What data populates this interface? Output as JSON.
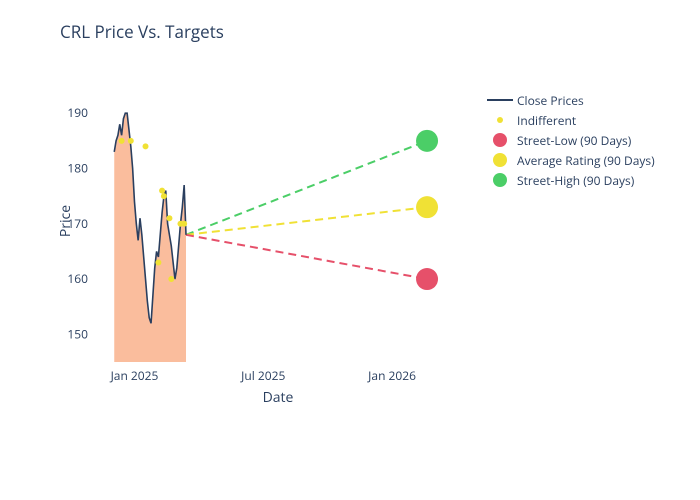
{
  "chart": {
    "type": "line+scatter",
    "title": "CRL Price Vs. Targets",
    "title_fontsize": 17,
    "title_color": "#2a3f5f",
    "background_color": "#ffffff",
    "plot_background": "#ffffff",
    "x_axis": {
      "title": "Date",
      "title_fontsize": 14,
      "label_color": "#2a3f5f",
      "tick_fontsize": 12,
      "ticks": [
        {
          "label": "Jan 2025",
          "pos": 0.11
        },
        {
          "label": "Jul 2025",
          "pos": 0.46
        },
        {
          "label": "Jan 2026",
          "pos": 0.81
        }
      ],
      "domain_start": "2024-11-01",
      "domain_end": "2026-04-01"
    },
    "y_axis": {
      "title": "Price",
      "title_fontsize": 14,
      "label_color": "#2a3f5f",
      "tick_fontsize": 12,
      "ticks": [
        150,
        160,
        170,
        180,
        190
      ],
      "ylim": [
        145,
        196
      ]
    },
    "series": {
      "close_prices": {
        "label": "Close Prices",
        "type": "line+area",
        "line_color": "#2a3f5f",
        "line_width": 1.6,
        "fill_color": "#f8ab82",
        "fill_opacity": 0.78,
        "xpos": [
          0.055,
          0.06,
          0.065,
          0.07,
          0.075,
          0.08,
          0.085,
          0.09,
          0.095,
          0.1,
          0.105,
          0.11,
          0.115,
          0.12,
          0.125,
          0.13,
          0.135,
          0.14,
          0.145,
          0.15,
          0.155,
          0.16,
          0.165,
          0.17,
          0.175,
          0.18,
          0.185,
          0.19,
          0.195,
          0.2,
          0.205,
          0.21,
          0.215,
          0.22,
          0.225,
          0.23,
          0.235,
          0.24,
          0.245,
          0.25
        ],
        "y": [
          183,
          185,
          186,
          188,
          186,
          189,
          190,
          190,
          187,
          184,
          180,
          174,
          170,
          167,
          171,
          168,
          164,
          160,
          156,
          153,
          152,
          157,
          162,
          165,
          164,
          168,
          172,
          175,
          176,
          170,
          168,
          166,
          163,
          160,
          162,
          166,
          170,
          173,
          177,
          168
        ]
      },
      "indifferent": {
        "label": "Indifferent",
        "type": "scatter",
        "marker_color": "#f0e135",
        "marker_size": 5,
        "points": [
          {
            "xpos": 0.075,
            "y": 185
          },
          {
            "xpos": 0.1,
            "y": 185
          },
          {
            "xpos": 0.14,
            "y": 184
          },
          {
            "xpos": 0.175,
            "y": 163
          },
          {
            "xpos": 0.185,
            "y": 176
          },
          {
            "xpos": 0.19,
            "y": 175
          },
          {
            "xpos": 0.205,
            "y": 171
          },
          {
            "xpos": 0.21,
            "y": 160
          },
          {
            "xpos": 0.235,
            "y": 170
          },
          {
            "xpos": 0.245,
            "y": 170
          }
        ]
      },
      "street_low": {
        "label": "Street-Low (90 Days)",
        "type": "dashed+marker",
        "line_color": "#e6506a",
        "line_width": 2,
        "dash": "8 5",
        "marker_color": "#e6506a",
        "marker_size": 11,
        "start": {
          "xpos": 0.25,
          "y": 168
        },
        "end": {
          "xpos": 0.905,
          "y": 160
        }
      },
      "average_rating": {
        "label": "Average Rating (90 Days)",
        "type": "dashed+marker",
        "line_color": "#f0e135",
        "line_width": 2,
        "dash": "8 5",
        "marker_color": "#f0e135",
        "marker_size": 11,
        "start": {
          "xpos": 0.25,
          "y": 168
        },
        "end": {
          "xpos": 0.905,
          "y": 173
        }
      },
      "street_high": {
        "label": "Street-High (90 Days)",
        "type": "dashed+marker",
        "line_color": "#4bce67",
        "line_width": 2,
        "dash": "8 5",
        "marker_color": "#4bce67",
        "marker_size": 11,
        "start": {
          "xpos": 0.25,
          "y": 168
        },
        "end": {
          "xpos": 0.905,
          "y": 185
        }
      }
    },
    "legend": {
      "position": "right",
      "fontsize": 12,
      "text_color": "#2a3f5f"
    }
  }
}
